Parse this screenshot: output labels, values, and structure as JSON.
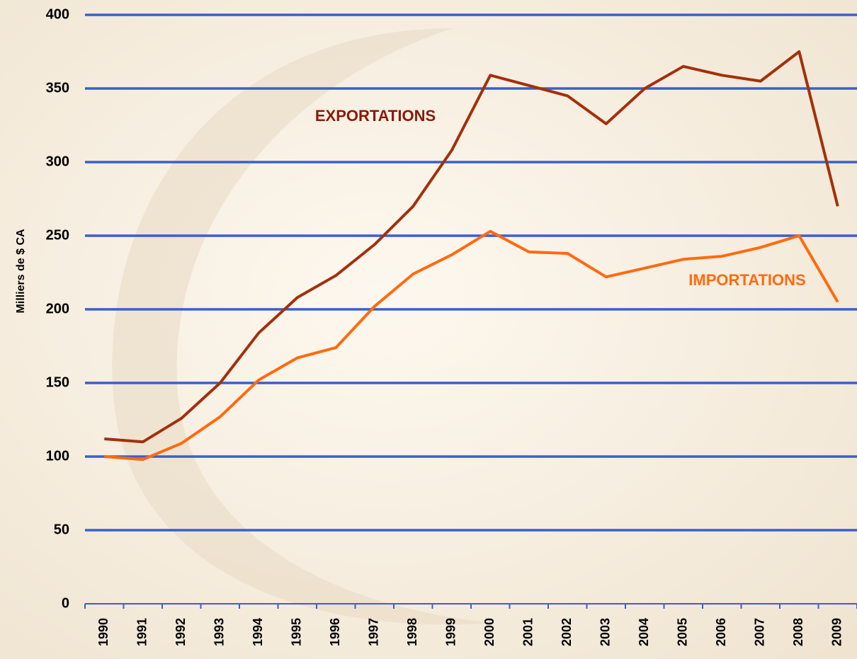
{
  "chart_data": {
    "type": "line",
    "y_label": "Milliers de $ CA",
    "categories": [
      "1990",
      "1991",
      "1992",
      "1993",
      "1994",
      "1995",
      "1996",
      "1997",
      "1998",
      "1999",
      "2000",
      "2001",
      "2002",
      "2003",
      "2004",
      "2005",
      "2006",
      "2007",
      "2008",
      "2009"
    ],
    "series": [
      {
        "name": "EXPORTATIONS",
        "color": "#a3300c",
        "values": [
          112,
          110,
          126,
          150,
          184,
          208,
          223,
          244,
          270,
          308,
          359,
          352,
          345,
          326,
          350,
          365,
          359,
          355,
          375,
          270
        ]
      },
      {
        "name": "IMPORTATIONS",
        "color": "#ff6a10",
        "values": [
          100,
          98,
          109,
          127,
          152,
          167,
          174,
          202,
          224,
          237,
          253,
          239,
          238,
          222,
          228,
          234,
          236,
          242,
          250,
          205
        ]
      }
    ],
    "ylim": [
      0,
      400
    ],
    "yticks": [
      0,
      50,
      100,
      150,
      200,
      250,
      300,
      350,
      400
    ],
    "grid": true
  }
}
